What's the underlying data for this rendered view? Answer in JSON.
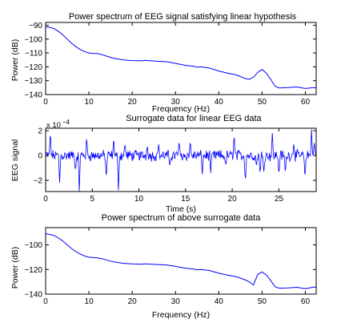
{
  "chart_data": [
    {
      "type": "line",
      "title": "Power spectrum of EEG signal satisfying linear hypothesis",
      "xlabel": "Frequency (Hz)",
      "ylabel": "Power (dB)",
      "xlim": [
        0,
        62.5
      ],
      "ylim": [
        -140,
        -88
      ],
      "xticks": [
        0,
        10,
        20,
        30,
        40,
        50,
        60
      ],
      "yticks": [
        -90,
        -100,
        -110,
        -120,
        -130,
        -140
      ],
      "grid": false,
      "line_color": "#0000ff",
      "series": [
        {
          "x": [
            0,
            1,
            2,
            3,
            4,
            5,
            6,
            7,
            8,
            9,
            10,
            11,
            12,
            13,
            14,
            15,
            16,
            18,
            20,
            22,
            23,
            24,
            26,
            28,
            30,
            32,
            33,
            34,
            35,
            36,
            37,
            38,
            40,
            42,
            44,
            45,
            46,
            47,
            48,
            49,
            50,
            51,
            52,
            53,
            54,
            56,
            58,
            60,
            62,
            62.5
          ],
          "values": [
            -91,
            -91.5,
            -92.5,
            -94.5,
            -97,
            -100,
            -103,
            -105.5,
            -107.5,
            -109,
            -110,
            -110.3,
            -110.5,
            -111.2,
            -112.2,
            -113.2,
            -114,
            -115,
            -115.5,
            -115.7,
            -115.4,
            -115.6,
            -116,
            -116.3,
            -117.5,
            -118.8,
            -119.2,
            -119.5,
            -120.2,
            -120,
            -120.5,
            -121,
            -123,
            -124.5,
            -125.8,
            -127,
            -128.3,
            -129,
            -127.5,
            -124,
            -122,
            -124.5,
            -129,
            -134,
            -135.2,
            -135,
            -134.5,
            -135.6,
            -135,
            -135.2
          ]
        }
      ]
    },
    {
      "type": "line",
      "title": "Surrogate data for linear EEG data",
      "xlabel": "Time (s)",
      "ylabel": "EEG signal",
      "xlim": [
        0,
        29
      ],
      "ylim": [
        -2.9,
        2.2
      ],
      "y_exponent": "x 10",
      "y_exponent_power": "−4",
      "xticks": [
        0,
        5,
        10,
        15,
        20,
        25
      ],
      "yticks": [
        2,
        0,
        -2
      ],
      "grid": false,
      "line_color": "#0000ff",
      "series": [
        {
          "x": [
            0.5,
            1.5,
            3.2,
            3.6,
            4.4,
            6.5,
            7.3,
            7.8,
            8.5,
            10.9,
            12.1,
            13.3,
            14.3,
            15.5,
            16.8,
            17.7,
            19.3,
            20.2,
            21.4,
            22.6,
            23.0,
            23.4,
            24.3,
            25.0,
            25.7,
            26.6,
            27.8,
            28.5,
            28.8
          ],
          "values": [
            1.9,
            -2.2,
            -1.3,
            -2.9,
            1.5,
            -1.9,
            1.4,
            -2.8,
            1.0,
            0.9,
            1.0,
            -0.9,
            1.2,
            1.2,
            -1.5,
            -1.4,
            -0.9,
            1.7,
            -2.2,
            -0.9,
            -1.6,
            -1.3,
            1.8,
            -1.6,
            -1.5,
            1.1,
            -1.9,
            2.1,
            1.0
          ]
        }
      ]
    },
    {
      "type": "line",
      "title": "Power spectrum of above surrogate data",
      "xlabel": "Frequency (Hz)",
      "ylabel": "Power (dB)",
      "xlim": [
        0,
        62.5
      ],
      "ylim": [
        -140,
        -86
      ],
      "xticks": [
        0,
        10,
        20,
        30,
        40,
        50,
        60
      ],
      "yticks": [
        -100,
        -120,
        -140
      ],
      "grid": false,
      "line_color": "#0000ff",
      "series": [
        {
          "x": [
            0,
            1,
            2,
            3,
            4,
            5,
            6,
            7,
            8,
            9,
            10,
            11,
            12,
            13,
            14,
            15,
            16,
            18,
            20,
            22,
            23,
            24,
            26,
            28,
            30,
            32,
            33,
            34,
            35,
            36,
            37,
            38,
            40,
            42,
            44,
            45,
            46,
            47,
            48,
            49,
            50,
            51,
            52,
            53,
            54,
            56,
            58,
            60,
            62,
            62.5
          ],
          "values": [
            -91,
            -91.5,
            -92.5,
            -94.5,
            -97,
            -100,
            -103,
            -105.5,
            -107.5,
            -109,
            -110,
            -110.3,
            -110.5,
            -111.2,
            -112.2,
            -113.2,
            -114,
            -115,
            -115.5,
            -115.7,
            -115.4,
            -115.6,
            -116,
            -116.3,
            -117.5,
            -118.8,
            -119.2,
            -119.5,
            -120.2,
            -120,
            -120.5,
            -121,
            -123,
            -124.5,
            -125.8,
            -127,
            -128.3,
            -130,
            -132.5,
            -124,
            -122,
            -124.5,
            -129,
            -134,
            -135.2,
            -135,
            -134.5,
            -135.6,
            -134.2,
            -134.3
          ]
        }
      ]
    }
  ]
}
